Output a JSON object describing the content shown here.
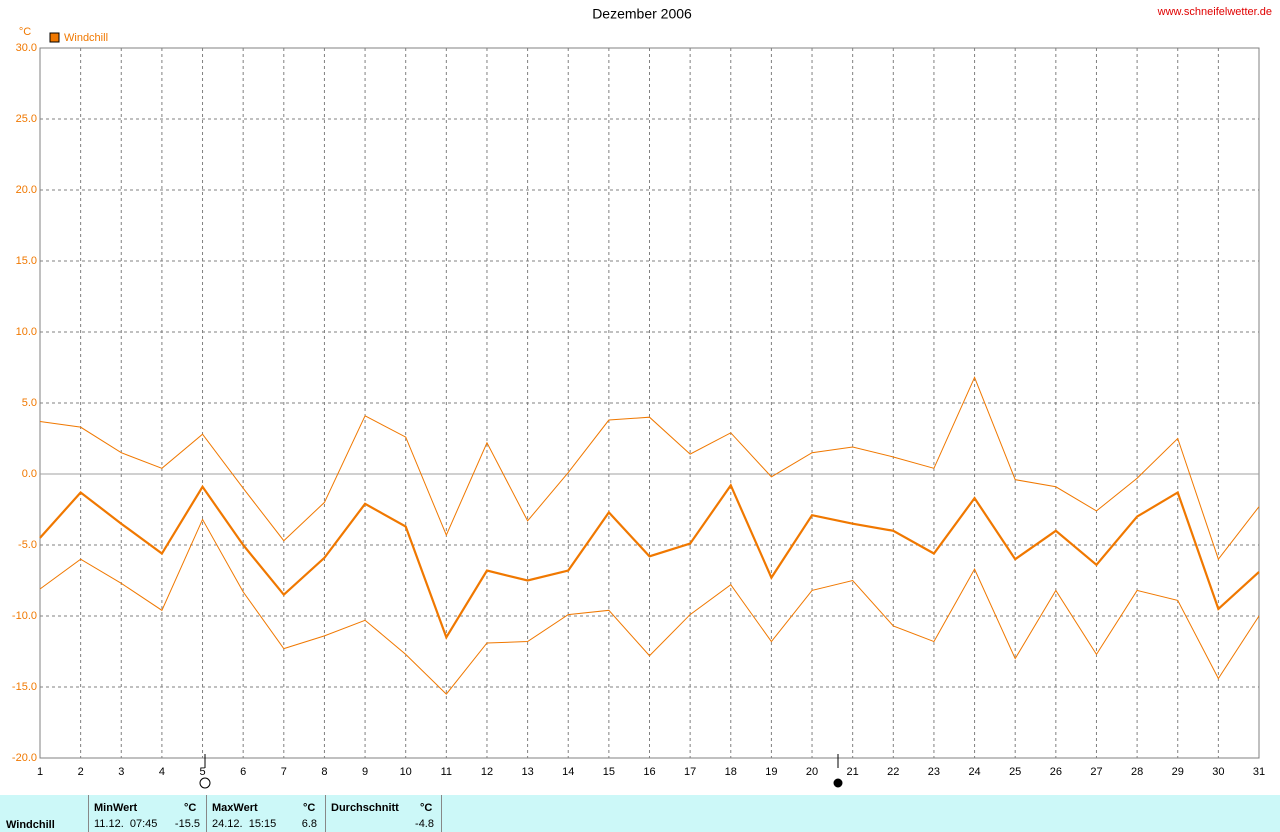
{
  "chart_data": {
    "type": "line",
    "title": "Dezember 2006",
    "source": "www.schneifelwetter.de",
    "y_unit": "°C",
    "x": [
      1,
      2,
      3,
      4,
      5,
      6,
      7,
      8,
      9,
      10,
      11,
      12,
      13,
      14,
      15,
      16,
      17,
      18,
      19,
      20,
      21,
      22,
      23,
      24,
      25,
      26,
      27,
      28,
      29,
      30,
      31
    ],
    "xlim": [
      1,
      31
    ],
    "xticks": [
      1,
      2,
      3,
      4,
      5,
      6,
      7,
      8,
      9,
      10,
      11,
      12,
      13,
      14,
      15,
      16,
      17,
      18,
      19,
      20,
      21,
      22,
      23,
      24,
      25,
      26,
      27,
      28,
      29,
      30,
      31
    ],
    "ylim": [
      -20,
      30
    ],
    "yticks": [
      {
        "value": -20,
        "label": "-20.0"
      },
      {
        "value": -15,
        "label": "-15.0"
      },
      {
        "value": -10,
        "label": "-10.0"
      },
      {
        "value": -5,
        "label": "-5.0"
      },
      {
        "value": 0,
        "label": "0.0"
      },
      {
        "value": 5,
        "label": "5.0"
      },
      {
        "value": 10,
        "label": "10.0"
      },
      {
        "value": 15,
        "label": "15.0"
      },
      {
        "value": 20,
        "label": "20.0"
      },
      {
        "value": 25,
        "label": "25.0"
      },
      {
        "value": 30,
        "label": "30.0"
      }
    ],
    "grid": true,
    "series": [
      {
        "name": "Windchill",
        "color": "#f07800",
        "values": [
          -4.5,
          -1.3,
          -3.5,
          -5.6,
          -0.9,
          -5.0,
          -8.5,
          -5.9,
          -2.1,
          -3.7,
          -11.5,
          -6.8,
          -7.5,
          -6.8,
          -2.7,
          -5.8,
          -4.9,
          -0.8,
          -7.3,
          -2.9,
          -3.5,
          -4.0,
          -5.6,
          -1.7,
          -6.0,
          -4.0,
          -6.4,
          -3.0,
          -1.3,
          -9.5,
          -6.9
        ],
        "max": [
          3.7,
          3.3,
          1.5,
          0.4,
          2.8,
          -1.0,
          -4.7,
          -2.0,
          4.1,
          2.6,
          -4.3,
          2.2,
          -3.3,
          0.1,
          3.8,
          4.0,
          1.4,
          2.9,
          -0.2,
          1.5,
          1.9,
          1.2,
          0.4,
          6.8,
          -0.4,
          -0.9,
          -2.6,
          -0.3,
          2.5,
          -6.0,
          -2.3
        ],
        "min": [
          -8.1,
          -6.0,
          -7.7,
          -9.6,
          -3.2,
          -8.3,
          -12.3,
          -11.4,
          -10.3,
          -12.7,
          -15.5,
          -11.9,
          -11.8,
          -9.9,
          -9.6,
          -12.8,
          -9.9,
          -7.8,
          -11.8,
          -8.2,
          -7.5,
          -10.7,
          -11.8,
          -6.7,
          -13.0,
          -8.2,
          -12.7,
          -8.2,
          -8.9,
          -14.4,
          -10.0
        ]
      }
    ]
  },
  "stats": {
    "label": "Windchill",
    "headers": [
      "MinWert",
      "°C",
      "MaxWert",
      "°C",
      "Durchschnitt",
      "°C"
    ],
    "row": [
      "11.12.  07:45",
      "-15.5",
      "24.12.  15:15",
      "6.8",
      "-4.8"
    ]
  }
}
